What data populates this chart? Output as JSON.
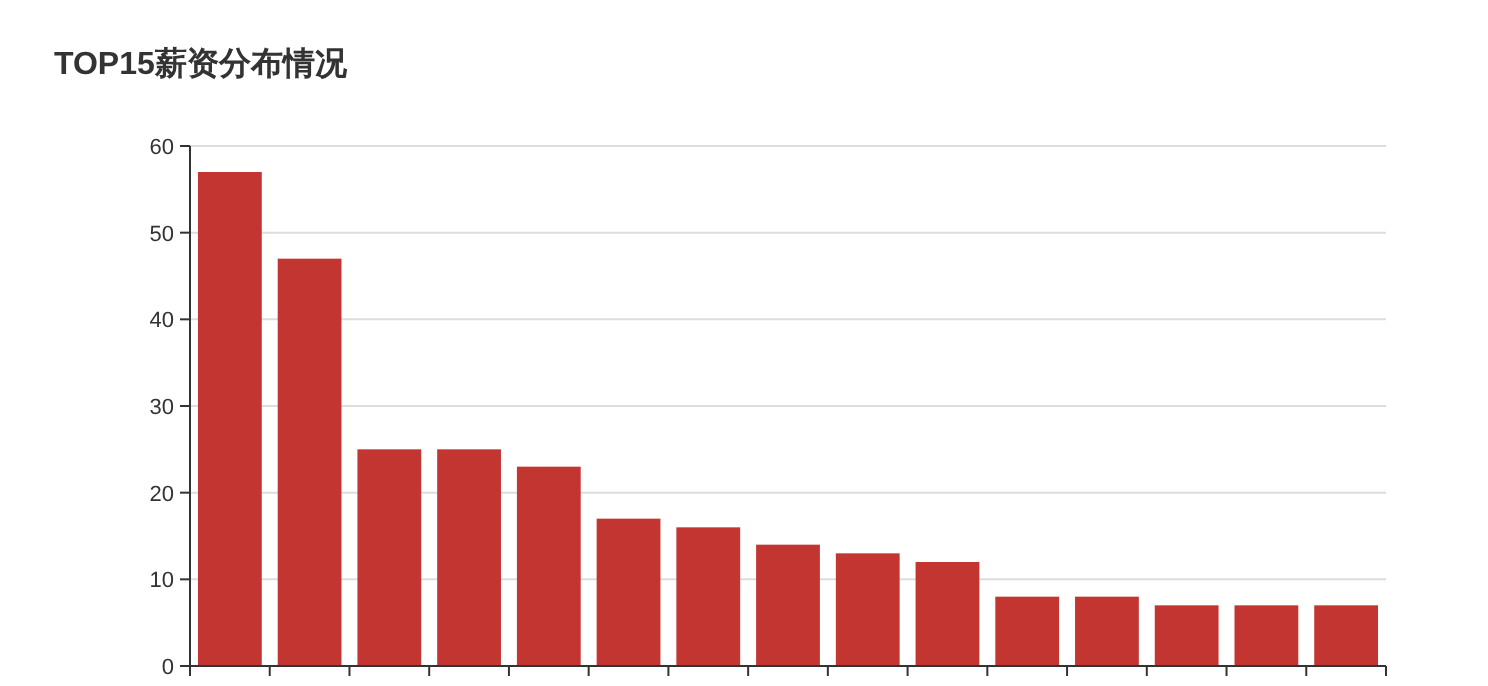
{
  "chart_data": {
    "type": "bar",
    "title": "TOP15薪资分布情况",
    "categories": [
      null,
      null,
      null,
      null,
      null,
      null,
      null,
      null,
      null,
      null,
      null,
      null,
      null,
      null,
      null
    ],
    "values": [
      57,
      47,
      25,
      25,
      23,
      17,
      16,
      14,
      13,
      12,
      8,
      8,
      7,
      7,
      7
    ],
    "color": "#c23531",
    "ylim": [
      0,
      60
    ],
    "yticks": [
      0,
      10,
      20,
      30,
      40,
      50,
      60
    ],
    "grid": "y"
  }
}
